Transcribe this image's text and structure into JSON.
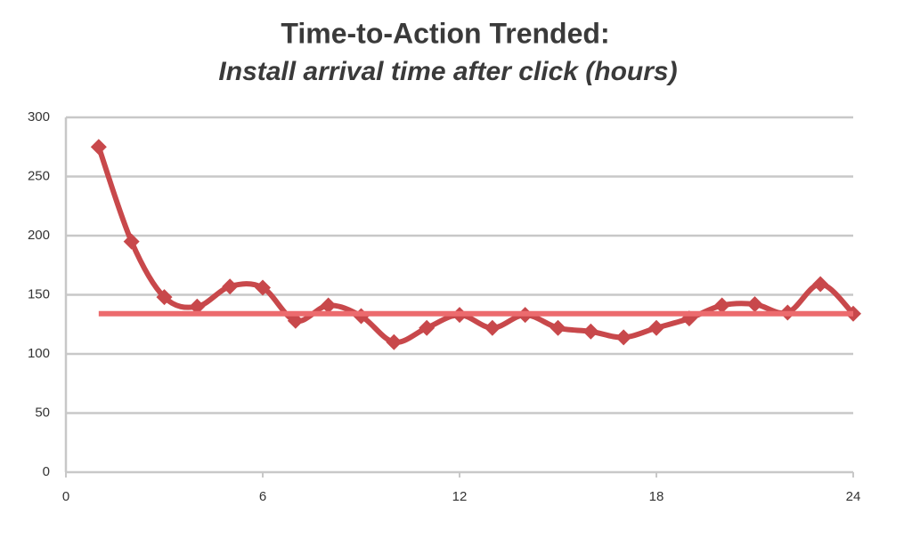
{
  "chart_data": {
    "type": "line",
    "title": "Time-to-Action Trended:",
    "subtitle": "Install arrival time after click (hours)",
    "xlim": [
      0,
      24
    ],
    "xticks": [
      0,
      6,
      12,
      18,
      24
    ],
    "ylim": [
      0,
      300
    ],
    "yticks": [
      0,
      50,
      100,
      150,
      200,
      250,
      300
    ],
    "grid": true,
    "smooth": true,
    "series": [
      {
        "color": "#c8484b",
        "marker": "diamond",
        "x": [
          1,
          2,
          3,
          4,
          5,
          6,
          7,
          8,
          9,
          10,
          11,
          12,
          13,
          14,
          15,
          16,
          17,
          18,
          19,
          20,
          21,
          22,
          23,
          24
        ],
        "values": [
          275,
          195,
          148,
          140,
          157,
          156,
          128,
          141,
          132,
          110,
          122,
          133,
          122,
          133,
          122,
          119,
          114,
          122,
          130,
          141,
          142,
          135,
          159,
          134
        ]
      },
      {
        "color": "#ec6b6e",
        "marker": "none",
        "x": [
          1,
          24
        ],
        "values": [
          134,
          134
        ]
      }
    ]
  }
}
